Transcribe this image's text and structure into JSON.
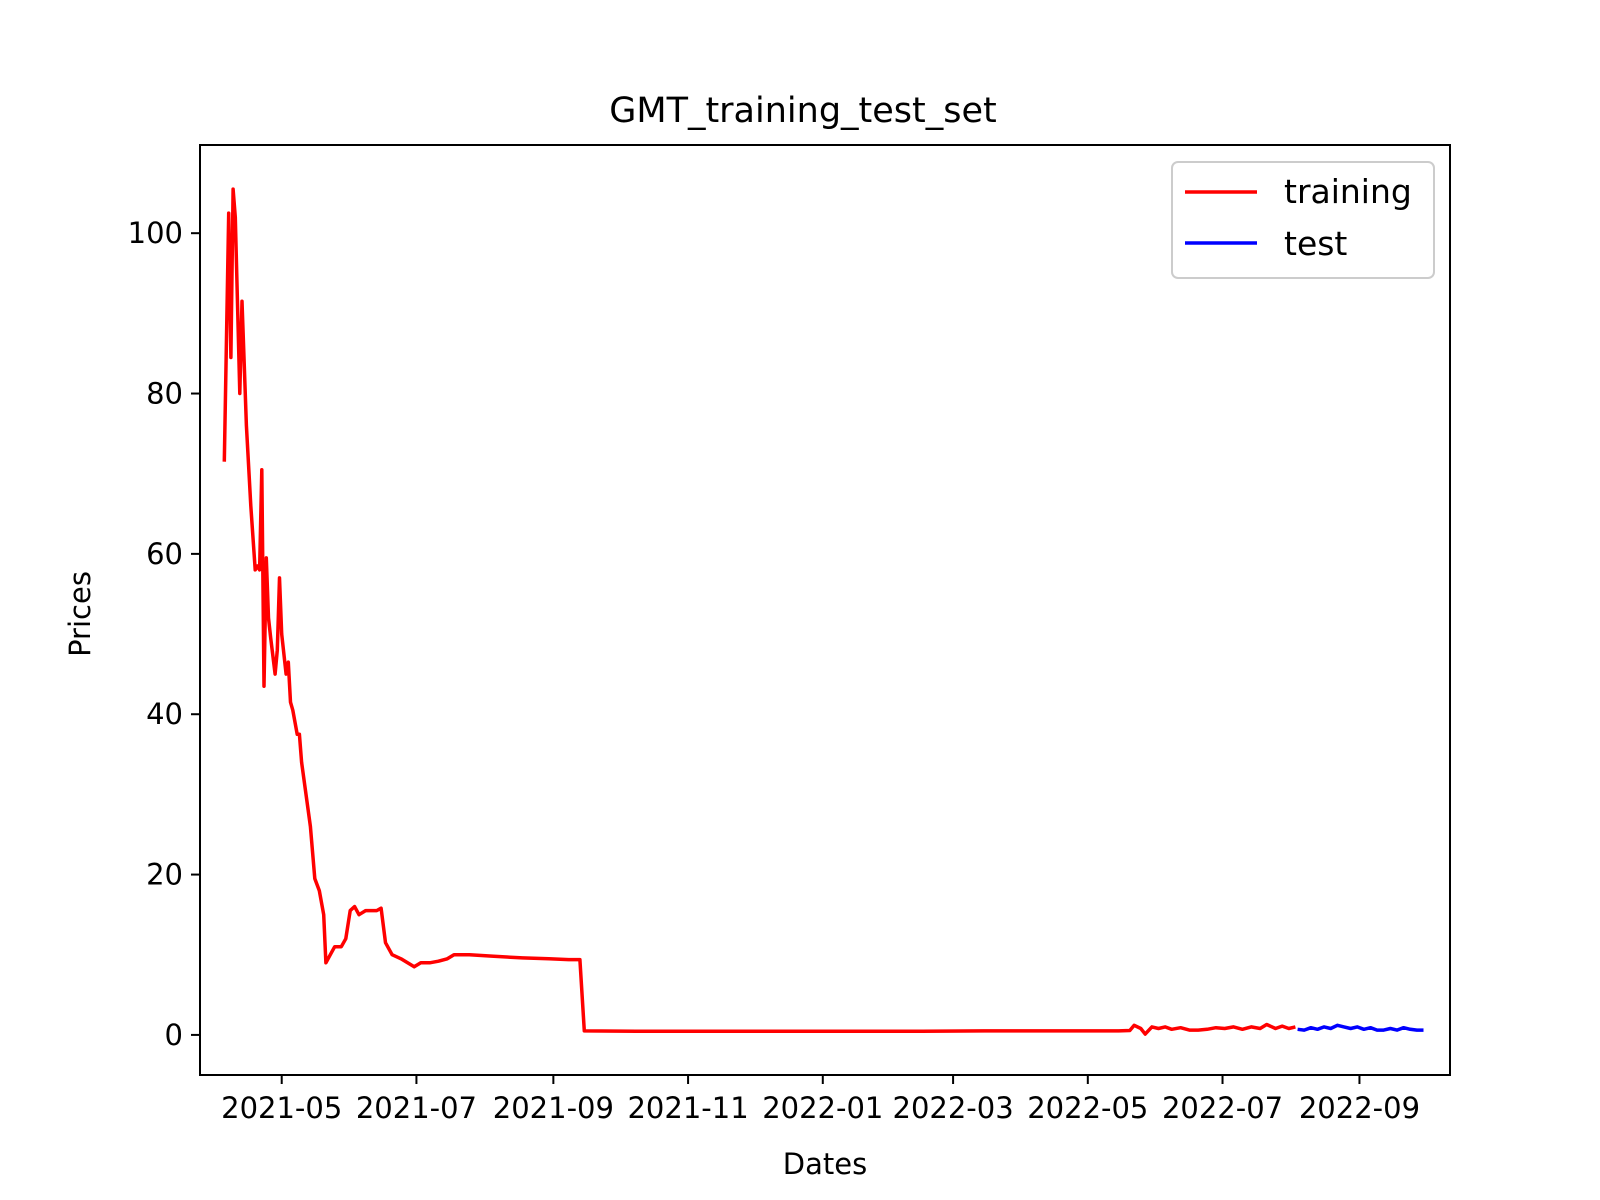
{
  "chart_data": {
    "type": "line",
    "title": "GMT_training_test_set",
    "xlabel": "Dates",
    "ylabel": "Prices",
    "xlim": [
      "2021-03-25",
      "2022-10-12"
    ],
    "ylim": [
      -5,
      111
    ],
    "x_ticks": [
      "2021-05",
      "2021-07",
      "2021-09",
      "2021-11",
      "2022-01",
      "2022-03",
      "2022-05",
      "2022-07",
      "2022-09"
    ],
    "y_ticks": [
      0,
      20,
      40,
      60,
      80,
      100
    ],
    "grid": false,
    "legend": {
      "position": "top-right",
      "entries": [
        "training",
        "test"
      ]
    },
    "series": [
      {
        "name": "training",
        "color": "#ff0000",
        "points": [
          [
            "2021-04-05",
            71.5
          ],
          [
            "2021-04-07",
            102.5
          ],
          [
            "2021-04-08",
            84.5
          ],
          [
            "2021-04-09",
            105.5
          ],
          [
            "2021-04-10",
            102.0
          ],
          [
            "2021-04-12",
            80.0
          ],
          [
            "2021-04-13",
            91.5
          ],
          [
            "2021-04-15",
            76.0
          ],
          [
            "2021-04-17",
            66.0
          ],
          [
            "2021-04-19",
            58.0
          ],
          [
            "2021-04-20",
            58.5
          ],
          [
            "2021-04-21",
            58.0
          ],
          [
            "2021-04-22",
            70.5
          ],
          [
            "2021-04-23",
            43.5
          ],
          [
            "2021-04-24",
            59.5
          ],
          [
            "2021-04-25",
            52.0
          ],
          [
            "2021-04-26",
            49.5
          ],
          [
            "2021-04-28",
            45.0
          ],
          [
            "2021-04-29",
            48.0
          ],
          [
            "2021-04-30",
            57.0
          ],
          [
            "2021-05-01",
            50.0
          ],
          [
            "2021-05-03",
            45.0
          ],
          [
            "2021-05-04",
            46.5
          ],
          [
            "2021-05-05",
            41.5
          ],
          [
            "2021-05-06",
            40.5
          ],
          [
            "2021-05-08",
            37.5
          ],
          [
            "2021-05-09",
            37.5
          ],
          [
            "2021-05-10",
            34.0
          ],
          [
            "2021-05-12",
            30.0
          ],
          [
            "2021-05-14",
            26.0
          ],
          [
            "2021-05-16",
            19.5
          ],
          [
            "2021-05-18",
            18.0
          ],
          [
            "2021-05-20",
            15.0
          ],
          [
            "2021-05-21",
            9.0
          ],
          [
            "2021-05-23",
            10.0
          ],
          [
            "2021-05-25",
            11.0
          ],
          [
            "2021-05-28",
            11.0
          ],
          [
            "2021-05-30",
            12.0
          ],
          [
            "2021-06-01",
            15.5
          ],
          [
            "2021-06-03",
            16.0
          ],
          [
            "2021-06-05",
            15.0
          ],
          [
            "2021-06-08",
            15.5
          ],
          [
            "2021-06-13",
            15.5
          ],
          [
            "2021-06-15",
            15.8
          ],
          [
            "2021-06-17",
            11.5
          ],
          [
            "2021-06-20",
            10.0
          ],
          [
            "2021-06-24",
            9.5
          ],
          [
            "2021-06-27",
            9.0
          ],
          [
            "2021-06-30",
            8.5
          ],
          [
            "2021-07-03",
            9.0
          ],
          [
            "2021-07-07",
            9.0
          ],
          [
            "2021-07-11",
            9.2
          ],
          [
            "2021-07-15",
            9.5
          ],
          [
            "2021-07-18",
            10.0
          ],
          [
            "2021-07-25",
            10.0
          ],
          [
            "2021-08-05",
            9.8
          ],
          [
            "2021-08-18",
            9.6
          ],
          [
            "2021-08-30",
            9.5
          ],
          [
            "2021-09-08",
            9.4
          ],
          [
            "2021-09-13",
            9.4
          ],
          [
            "2021-09-15",
            0.5
          ],
          [
            "2021-10-15",
            0.45
          ],
          [
            "2021-11-15",
            0.45
          ],
          [
            "2021-12-15",
            0.45
          ],
          [
            "2022-01-15",
            0.45
          ],
          [
            "2022-02-15",
            0.45
          ],
          [
            "2022-03-15",
            0.5
          ],
          [
            "2022-04-15",
            0.5
          ],
          [
            "2022-05-15",
            0.5
          ],
          [
            "2022-05-20",
            0.55
          ],
          [
            "2022-05-22",
            1.2
          ],
          [
            "2022-05-25",
            0.8
          ],
          [
            "2022-05-27",
            0.1
          ],
          [
            "2022-05-30",
            1.0
          ],
          [
            "2022-06-02",
            0.8
          ],
          [
            "2022-06-05",
            1.0
          ],
          [
            "2022-06-08",
            0.7
          ],
          [
            "2022-06-12",
            0.9
          ],
          [
            "2022-06-16",
            0.6
          ],
          [
            "2022-06-20",
            0.6
          ],
          [
            "2022-06-24",
            0.7
          ],
          [
            "2022-06-28",
            0.9
          ],
          [
            "2022-07-02",
            0.8
          ],
          [
            "2022-07-06",
            1.0
          ],
          [
            "2022-07-10",
            0.7
          ],
          [
            "2022-07-14",
            1.0
          ],
          [
            "2022-07-18",
            0.8
          ],
          [
            "2022-07-21",
            1.3
          ],
          [
            "2022-07-25",
            0.8
          ],
          [
            "2022-07-28",
            1.1
          ],
          [
            "2022-07-31",
            0.8
          ],
          [
            "2022-08-03",
            1.0
          ]
        ]
      },
      {
        "name": "test",
        "color": "#0000ff",
        "points": [
          [
            "2022-08-04",
            0.7
          ],
          [
            "2022-08-07",
            0.6
          ],
          [
            "2022-08-10",
            0.9
          ],
          [
            "2022-08-13",
            0.7
          ],
          [
            "2022-08-16",
            1.0
          ],
          [
            "2022-08-19",
            0.8
          ],
          [
            "2022-08-22",
            1.2
          ],
          [
            "2022-08-25",
            1.0
          ],
          [
            "2022-08-28",
            0.8
          ],
          [
            "2022-08-31",
            1.0
          ],
          [
            "2022-09-03",
            0.7
          ],
          [
            "2022-09-06",
            0.9
          ],
          [
            "2022-09-09",
            0.6
          ],
          [
            "2022-09-12",
            0.6
          ],
          [
            "2022-09-15",
            0.8
          ],
          [
            "2022-09-18",
            0.6
          ],
          [
            "2022-09-21",
            0.9
          ],
          [
            "2022-09-24",
            0.7
          ],
          [
            "2022-09-27",
            0.6
          ],
          [
            "2022-09-30",
            0.6
          ]
        ]
      }
    ]
  }
}
